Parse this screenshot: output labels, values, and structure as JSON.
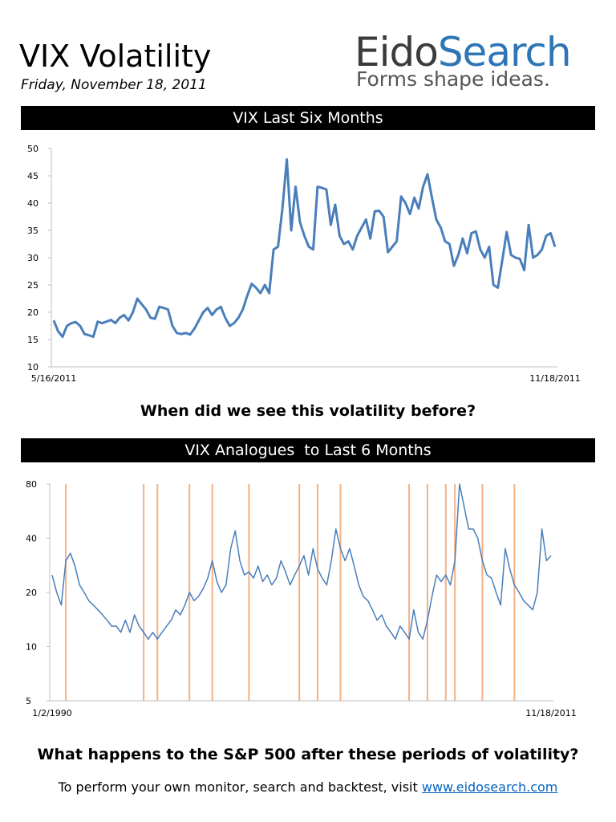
{
  "header": {
    "title": "VIX Volatility",
    "date": "Friday, November 18, 2011"
  },
  "logo": {
    "name_part1": "Eido",
    "name_part2": "Search",
    "tagline": "Forms shape ideas."
  },
  "chart_data": [
    {
      "type": "line",
      "title": "VIX Last Six Months",
      "categories": [
        "5/16/2011",
        null,
        null,
        null,
        null,
        null,
        null,
        null,
        null,
        null,
        null,
        null,
        null,
        null,
        null,
        null,
        null,
        null,
        null,
        null,
        null,
        null,
        null,
        null,
        null,
        null,
        null,
        null,
        null,
        null,
        null,
        null,
        null,
        null,
        null,
        null,
        null,
        null,
        null,
        null,
        null,
        null,
        null,
        null,
        null,
        null,
        null,
        null,
        null,
        null,
        null,
        null,
        null,
        null,
        null,
        null,
        null,
        null,
        null,
        null,
        null,
        null,
        null,
        null,
        null,
        null,
        null,
        null,
        null,
        null,
        null,
        null,
        null,
        null,
        null,
        null,
        null,
        null,
        null,
        null,
        null,
        null,
        null,
        null,
        null,
        null,
        null,
        null,
        null,
        null,
        null,
        null,
        null,
        null,
        null,
        null,
        null,
        null,
        null,
        null,
        null,
        null,
        null,
        null,
        null,
        null,
        null,
        null,
        null,
        null,
        null,
        null,
        null,
        null,
        "11/18/2011"
      ],
      "series": [
        {
          "name": "VIX",
          "color": "#4a7ebb",
          "values": [
            18.5,
            16.5,
            15.5,
            17.5,
            18,
            18.2,
            17.5,
            16,
            15.8,
            15.5,
            18.3,
            18,
            18.3,
            18.6,
            18,
            19,
            19.5,
            18.5,
            20,
            22.5,
            21.5,
            20.5,
            19,
            18.8,
            21,
            20.8,
            20.5,
            17.5,
            16.2,
            16,
            16.2,
            15.9,
            17,
            18.5,
            20,
            20.8,
            19.5,
            20.5,
            21,
            19,
            17.5,
            18,
            19,
            20.5,
            23,
            25.2,
            24.5,
            23.5,
            25,
            23.5,
            31.5,
            32,
            39,
            48,
            35,
            43,
            36.5,
            34,
            32,
            31.5,
            43,
            42.8,
            42.5,
            36,
            39.7,
            34,
            32.5,
            33,
            31.5,
            34,
            35.5,
            37,
            33.5,
            38.5,
            38.6,
            37.5,
            31,
            32,
            33,
            41.2,
            40,
            38,
            41,
            39,
            43,
            45.3,
            41,
            37,
            35.5,
            33,
            32.5,
            28.5,
            30.5,
            33.5,
            30.8,
            34.5,
            34.8,
            31.5,
            30,
            32,
            25,
            24.5,
            29.5,
            34.7,
            30.5,
            30,
            29.8,
            27.7,
            36,
            30,
            30.5,
            31.5,
            34,
            34.5,
            32
          ]
        }
      ],
      "ylim": [
        10,
        50
      ],
      "yticks": [
        10,
        15,
        20,
        25,
        30,
        35,
        40,
        45,
        50
      ],
      "log_scale": false,
      "grid": false
    },
    {
      "type": "line",
      "title": "VIX Analogues  to Last 6 Months",
      "categories": [
        "1/2/1990",
        null,
        null,
        null,
        null,
        null,
        null,
        null,
        null,
        null,
        null,
        null,
        null,
        null,
        null,
        null,
        null,
        null,
        null,
        null,
        null,
        null,
        null,
        null,
        null,
        null,
        null,
        null,
        null,
        null,
        null,
        null,
        null,
        null,
        null,
        null,
        null,
        null,
        null,
        null,
        null,
        null,
        null,
        null,
        null,
        null,
        null,
        null,
        null,
        null,
        null,
        null,
        null,
        null,
        null,
        null,
        null,
        null,
        null,
        null,
        null,
        null,
        null,
        null,
        null,
        null,
        null,
        null,
        null,
        null,
        null,
        null,
        null,
        null,
        null,
        null,
        null,
        null,
        null,
        null,
        null,
        null,
        null,
        null,
        null,
        null,
        null,
        null,
        null,
        null,
        null,
        null,
        null,
        null,
        null,
        null,
        null,
        null,
        null,
        null,
        null,
        null,
        null,
        null,
        null,
        null,
        null,
        null,
        null,
        "11/18/2011"
      ],
      "series": [
        {
          "name": "VIX",
          "color": "#4a7ebb",
          "values": [
            25,
            20,
            17,
            30,
            33,
            28,
            22,
            20,
            18,
            17,
            16,
            15,
            14,
            13,
            13,
            12,
            14,
            12,
            15,
            13,
            12,
            11,
            12,
            11,
            12,
            13,
            14,
            16,
            15,
            17,
            20,
            18,
            19,
            21,
            24,
            30,
            23,
            20,
            22,
            35,
            44,
            30,
            25,
            26,
            24,
            28,
            23,
            25,
            22,
            24,
            30,
            26,
            22,
            25,
            28,
            32,
            25,
            35,
            27,
            24,
            22,
            30,
            45,
            35,
            30,
            35,
            28,
            22,
            19,
            18,
            16,
            14,
            15,
            13,
            12,
            11,
            13,
            12,
            11,
            16,
            12,
            11,
            14,
            19,
            25,
            23,
            25,
            22,
            30,
            80,
            60,
            45,
            45,
            40,
            30,
            25,
            24,
            20,
            17,
            35,
            27,
            22,
            20,
            18,
            17,
            16,
            20,
            45,
            30,
            32
          ]
        }
      ],
      "highlights": {
        "color": "#f4b183",
        "indices": [
          3,
          20,
          23,
          30,
          35,
          43,
          54,
          58,
          63,
          78,
          82,
          86,
          88,
          94,
          101
        ]
      },
      "ylim": [
        5,
        80
      ],
      "yticks": [
        5,
        10,
        20,
        40,
        80
      ],
      "log_scale": true,
      "grid": false
    }
  ],
  "questions": [
    "When did we see this volatility before?",
    "What happens to the S&P 500 after these periods of volatility?"
  ],
  "footer": {
    "text": "To perform your own monitor, search and backtest, visit ",
    "link": "www.eidosearch.com"
  }
}
